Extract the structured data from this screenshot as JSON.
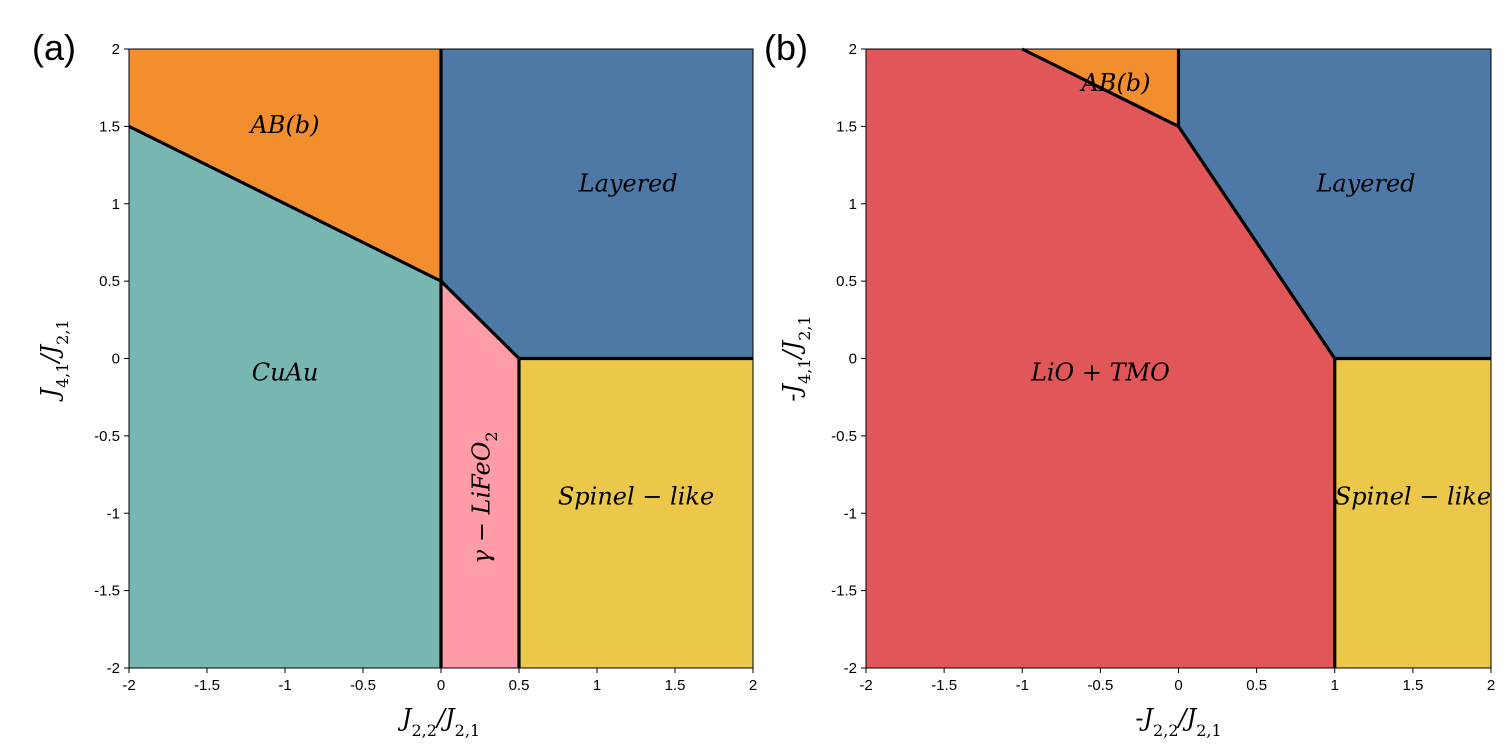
{
  "chart_data": [
    {
      "type": "phase_diagram",
      "panel_label": "(a)",
      "xlabel": {
        "prefix": "",
        "base": "J",
        "sub1": "2,2",
        "mid": "/J",
        "sub2": "2,1"
      },
      "ylabel": {
        "prefix": "",
        "base": "J",
        "sub1": "4,1",
        "mid": "/J",
        "sub2": "2,1"
      },
      "xlim": [
        -2,
        2
      ],
      "ylim": [
        -2,
        2
      ],
      "xticks": [
        -2,
        -1.5,
        -1,
        -0.5,
        0,
        0.5,
        1,
        1.5,
        2
      ],
      "yticks": [
        -2,
        -1.5,
        -1,
        -0.5,
        0,
        0.5,
        1,
        1.5,
        2
      ],
      "regions": [
        {
          "id": "ab-b",
          "label": "AB(b)",
          "color": "#f28e2e",
          "polygon": [
            [
              -2,
              1.5
            ],
            [
              -2,
              2
            ],
            [
              0,
              2
            ],
            [
              0,
              0.5
            ]
          ],
          "label_at": [
            -1,
            1.5
          ],
          "rotate": 0
        },
        {
          "id": "layered",
          "label": "Layered",
          "color": "#4e79a7",
          "polygon": [
            [
              0,
              2
            ],
            [
              2,
              2
            ],
            [
              2,
              0
            ],
            [
              0.5,
              0
            ],
            [
              0,
              0.5
            ]
          ],
          "label_at": [
            1.2,
            1.12
          ],
          "rotate": 0
        },
        {
          "id": "cuau",
          "label": "CuAu",
          "color": "#77b6b1",
          "polygon": [
            [
              -2,
              -2
            ],
            [
              -2,
              1.5
            ],
            [
              0,
              0.5
            ],
            [
              0,
              -2
            ]
          ],
          "label_at": [
            -1,
            -0.1
          ],
          "rotate": 0
        },
        {
          "id": "gamma-lifeo2",
          "label": "γ − LiFeO",
          "label_sub": "2",
          "color": "#ff9ca7",
          "polygon": [
            [
              0,
              -2
            ],
            [
              0,
              0.5
            ],
            [
              0.5,
              0
            ],
            [
              0.5,
              -2
            ]
          ],
          "label_at": [
            0.27,
            -0.9
          ],
          "rotate": -90
        },
        {
          "id": "spinel-like",
          "label": "Spinel − like",
          "color": "#ecc84a",
          "polygon": [
            [
              0.5,
              -2
            ],
            [
              0.5,
              0
            ],
            [
              2,
              0
            ],
            [
              2,
              -2
            ]
          ],
          "label_at": [
            1.25,
            -0.9
          ],
          "rotate": 0
        }
      ],
      "boundaries": [
        [
          [
            -2,
            1.5
          ],
          [
            0,
            0.5
          ]
        ],
        [
          [
            0,
            2
          ],
          [
            0,
            -2
          ]
        ],
        [
          [
            0,
            0.5
          ],
          [
            0.5,
            0
          ]
        ],
        [
          [
            0.5,
            0
          ],
          [
            2,
            0
          ]
        ],
        [
          [
            0.5,
            0
          ],
          [
            0.5,
            -2
          ]
        ]
      ]
    },
    {
      "type": "phase_diagram",
      "panel_label": "(b)",
      "xlabel": {
        "prefix": "-",
        "base": "J",
        "sub1": "2,2",
        "mid": "/J",
        "sub2": "2,1"
      },
      "ylabel": {
        "prefix": "-",
        "base": "J",
        "sub1": "4,1",
        "mid": "/J",
        "sub2": "2,1"
      },
      "xlim": [
        -2,
        2
      ],
      "ylim": [
        -2,
        2
      ],
      "xticks": [
        -2,
        -1.5,
        -1,
        -0.5,
        0,
        0.5,
        1,
        1.5,
        2
      ],
      "yticks": [
        -2,
        -1.5,
        -1,
        -0.5,
        0,
        0.5,
        1,
        1.5,
        2
      ],
      "regions": [
        {
          "id": "ab-b",
          "label": "AB(b)",
          "color": "#f28e2e",
          "polygon": [
            [
              -1,
              2
            ],
            [
              0,
              2
            ],
            [
              0,
              1.5
            ]
          ],
          "label_at": [
            -0.4,
            1.77
          ],
          "rotate": 0
        },
        {
          "id": "layered",
          "label": "Layered",
          "color": "#4e79a7",
          "polygon": [
            [
              0,
              2
            ],
            [
              2,
              2
            ],
            [
              2,
              0
            ],
            [
              1,
              0
            ],
            [
              0,
              1.5
            ]
          ],
          "label_at": [
            1.2,
            1.12
          ],
          "rotate": 0
        },
        {
          "id": "lio-tmo",
          "label": "LiO + TMO",
          "color": "#e15759",
          "polygon": [
            [
              -2,
              -2
            ],
            [
              -2,
              2
            ],
            [
              -1,
              2
            ],
            [
              0,
              1.5
            ],
            [
              1,
              0
            ],
            [
              1,
              -2
            ]
          ],
          "label_at": [
            -0.5,
            -0.1
          ],
          "rotate": 0
        },
        {
          "id": "spinel-like",
          "label": "Spinel − like",
          "color": "#ecc84a",
          "polygon": [
            [
              1,
              -2
            ],
            [
              1,
              0
            ],
            [
              2,
              0
            ],
            [
              2,
              -2
            ]
          ],
          "label_at": [
            1.5,
            -0.9
          ],
          "rotate": 0
        }
      ],
      "boundaries": [
        [
          [
            -1,
            2
          ],
          [
            0,
            1.5
          ]
        ],
        [
          [
            0,
            2
          ],
          [
            0,
            1.5
          ]
        ],
        [
          [
            0,
            1.5
          ],
          [
            1,
            0
          ]
        ],
        [
          [
            1,
            0
          ],
          [
            2,
            0
          ]
        ],
        [
          [
            1,
            0
          ],
          [
            1,
            -2
          ]
        ]
      ]
    }
  ]
}
